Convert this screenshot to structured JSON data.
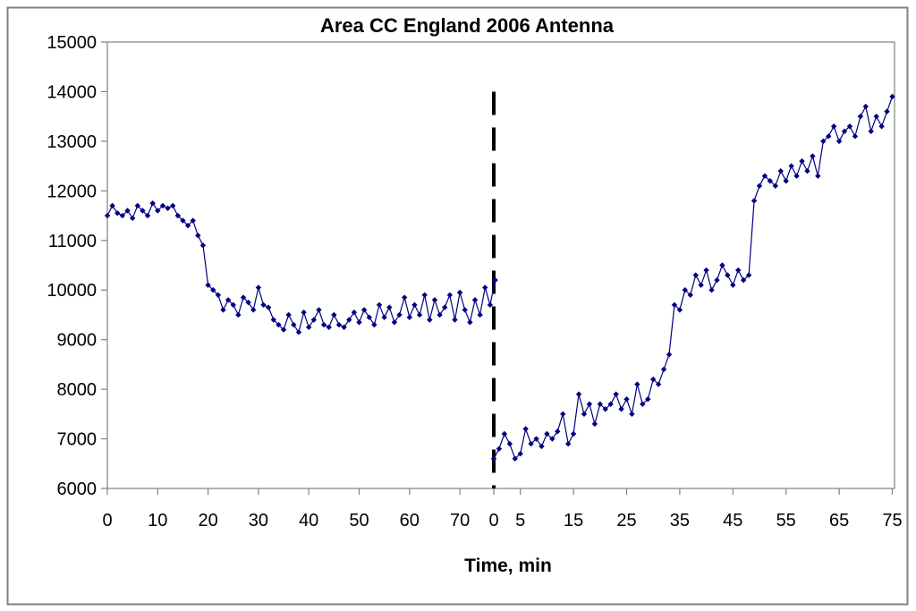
{
  "chart_data": {
    "type": "line",
    "title": "Area CC England 2006 Antenna",
    "xlabel": "Time, min",
    "ylabel": "",
    "ylim": [
      6000,
      15000
    ],
    "yticks": [
      "6000",
      "7000",
      "8000",
      "9000",
      "10000",
      "11000",
      "12000",
      "13000",
      "14000",
      "15000"
    ],
    "grid": false,
    "legend": "none",
    "line_color": "#000080",
    "marker": "diamond",
    "segments": [
      {
        "xticks": [
          "0",
          "10",
          "20",
          "30",
          "40",
          "50",
          "60",
          "70"
        ],
        "xtick_values": [
          0,
          10,
          20,
          30,
          40,
          50,
          60,
          70
        ],
        "x": [
          0,
          1,
          2,
          3,
          4,
          5,
          6,
          7,
          8,
          9,
          10,
          11,
          12,
          13,
          14,
          15,
          16,
          17,
          18,
          19,
          20,
          21,
          22,
          23,
          24,
          25,
          26,
          27,
          28,
          29,
          30,
          31,
          32,
          33,
          34,
          35,
          36,
          37,
          38,
          39,
          40,
          41,
          42,
          43,
          44,
          45,
          46,
          47,
          48,
          49,
          50,
          51,
          52,
          53,
          54,
          55,
          56,
          57,
          58,
          59,
          60,
          61,
          62,
          63,
          64,
          65,
          66,
          67,
          68,
          69,
          70,
          71,
          72,
          73,
          74,
          75,
          76,
          77
        ],
        "y": [
          11500,
          11700,
          11550,
          11500,
          11600,
          11450,
          11700,
          11600,
          11500,
          11750,
          11600,
          11700,
          11650,
          11700,
          11500,
          11400,
          11300,
          11400,
          11100,
          10900,
          10100,
          10000,
          9900,
          9600,
          9800,
          9700,
          9500,
          9850,
          9750,
          9600,
          10050,
          9700,
          9650,
          9400,
          9300,
          9200,
          9500,
          9300,
          9150,
          9550,
          9250,
          9400,
          9600,
          9300,
          9250,
          9500,
          9300,
          9250,
          9400,
          9550,
          9350,
          9600,
          9450,
          9300,
          9700,
          9450,
          9650,
          9350,
          9500,
          9850,
          9450,
          9700,
          9500,
          9900,
          9400,
          9800,
          9500,
          9650,
          9900,
          9400,
          9950,
          9600,
          9350,
          9800,
          9500,
          10050,
          9700,
          10200
        ]
      },
      {
        "xticks": [
          "0",
          "5",
          "15",
          "25",
          "35",
          "45",
          "55",
          "65",
          "75"
        ],
        "xtick_values": [
          0,
          5,
          15,
          25,
          35,
          45,
          55,
          65,
          75
        ],
        "x": [
          0,
          1,
          2,
          3,
          4,
          5,
          6,
          7,
          8,
          9,
          10,
          11,
          12,
          13,
          14,
          15,
          16,
          17,
          18,
          19,
          20,
          21,
          22,
          23,
          24,
          25,
          26,
          27,
          28,
          29,
          30,
          31,
          32,
          33,
          34,
          35,
          36,
          37,
          38,
          39,
          40,
          41,
          42,
          43,
          44,
          45,
          46,
          47,
          48,
          49,
          50,
          51,
          52,
          53,
          54,
          55,
          56,
          57,
          58,
          59,
          60,
          61,
          62,
          63,
          64,
          65,
          66,
          67,
          68,
          69,
          70,
          71,
          72,
          73,
          74,
          75
        ],
        "y": [
          6600,
          6800,
          7100,
          6900,
          6600,
          6700,
          7200,
          6900,
          7000,
          6850,
          7100,
          7000,
          7150,
          7500,
          6900,
          7100,
          7900,
          7500,
          7700,
          7300,
          7700,
          7600,
          7700,
          7900,
          7600,
          7800,
          7500,
          8100,
          7700,
          7800,
          8200,
          8100,
          8400,
          8700,
          9700,
          9600,
          10000,
          9900,
          10300,
          10100,
          10400,
          10000,
          10200,
          10500,
          10300,
          10100,
          10400,
          10200,
          10300,
          11800,
          12100,
          12300,
          12200,
          12100,
          12400,
          12200,
          12500,
          12300,
          12600,
          12400,
          12700,
          12300,
          13000,
          13100,
          13300,
          13000,
          13200,
          13300,
          13100,
          13500,
          13700,
          13200,
          13500,
          13300,
          13600,
          13900
        ]
      }
    ],
    "annotations": [
      {
        "type": "vertical-dashed-line",
        "at": "boundary between segments (second segment time 0)",
        "from_y": 14000,
        "to_y": 6000,
        "color": "#000000"
      }
    ]
  }
}
